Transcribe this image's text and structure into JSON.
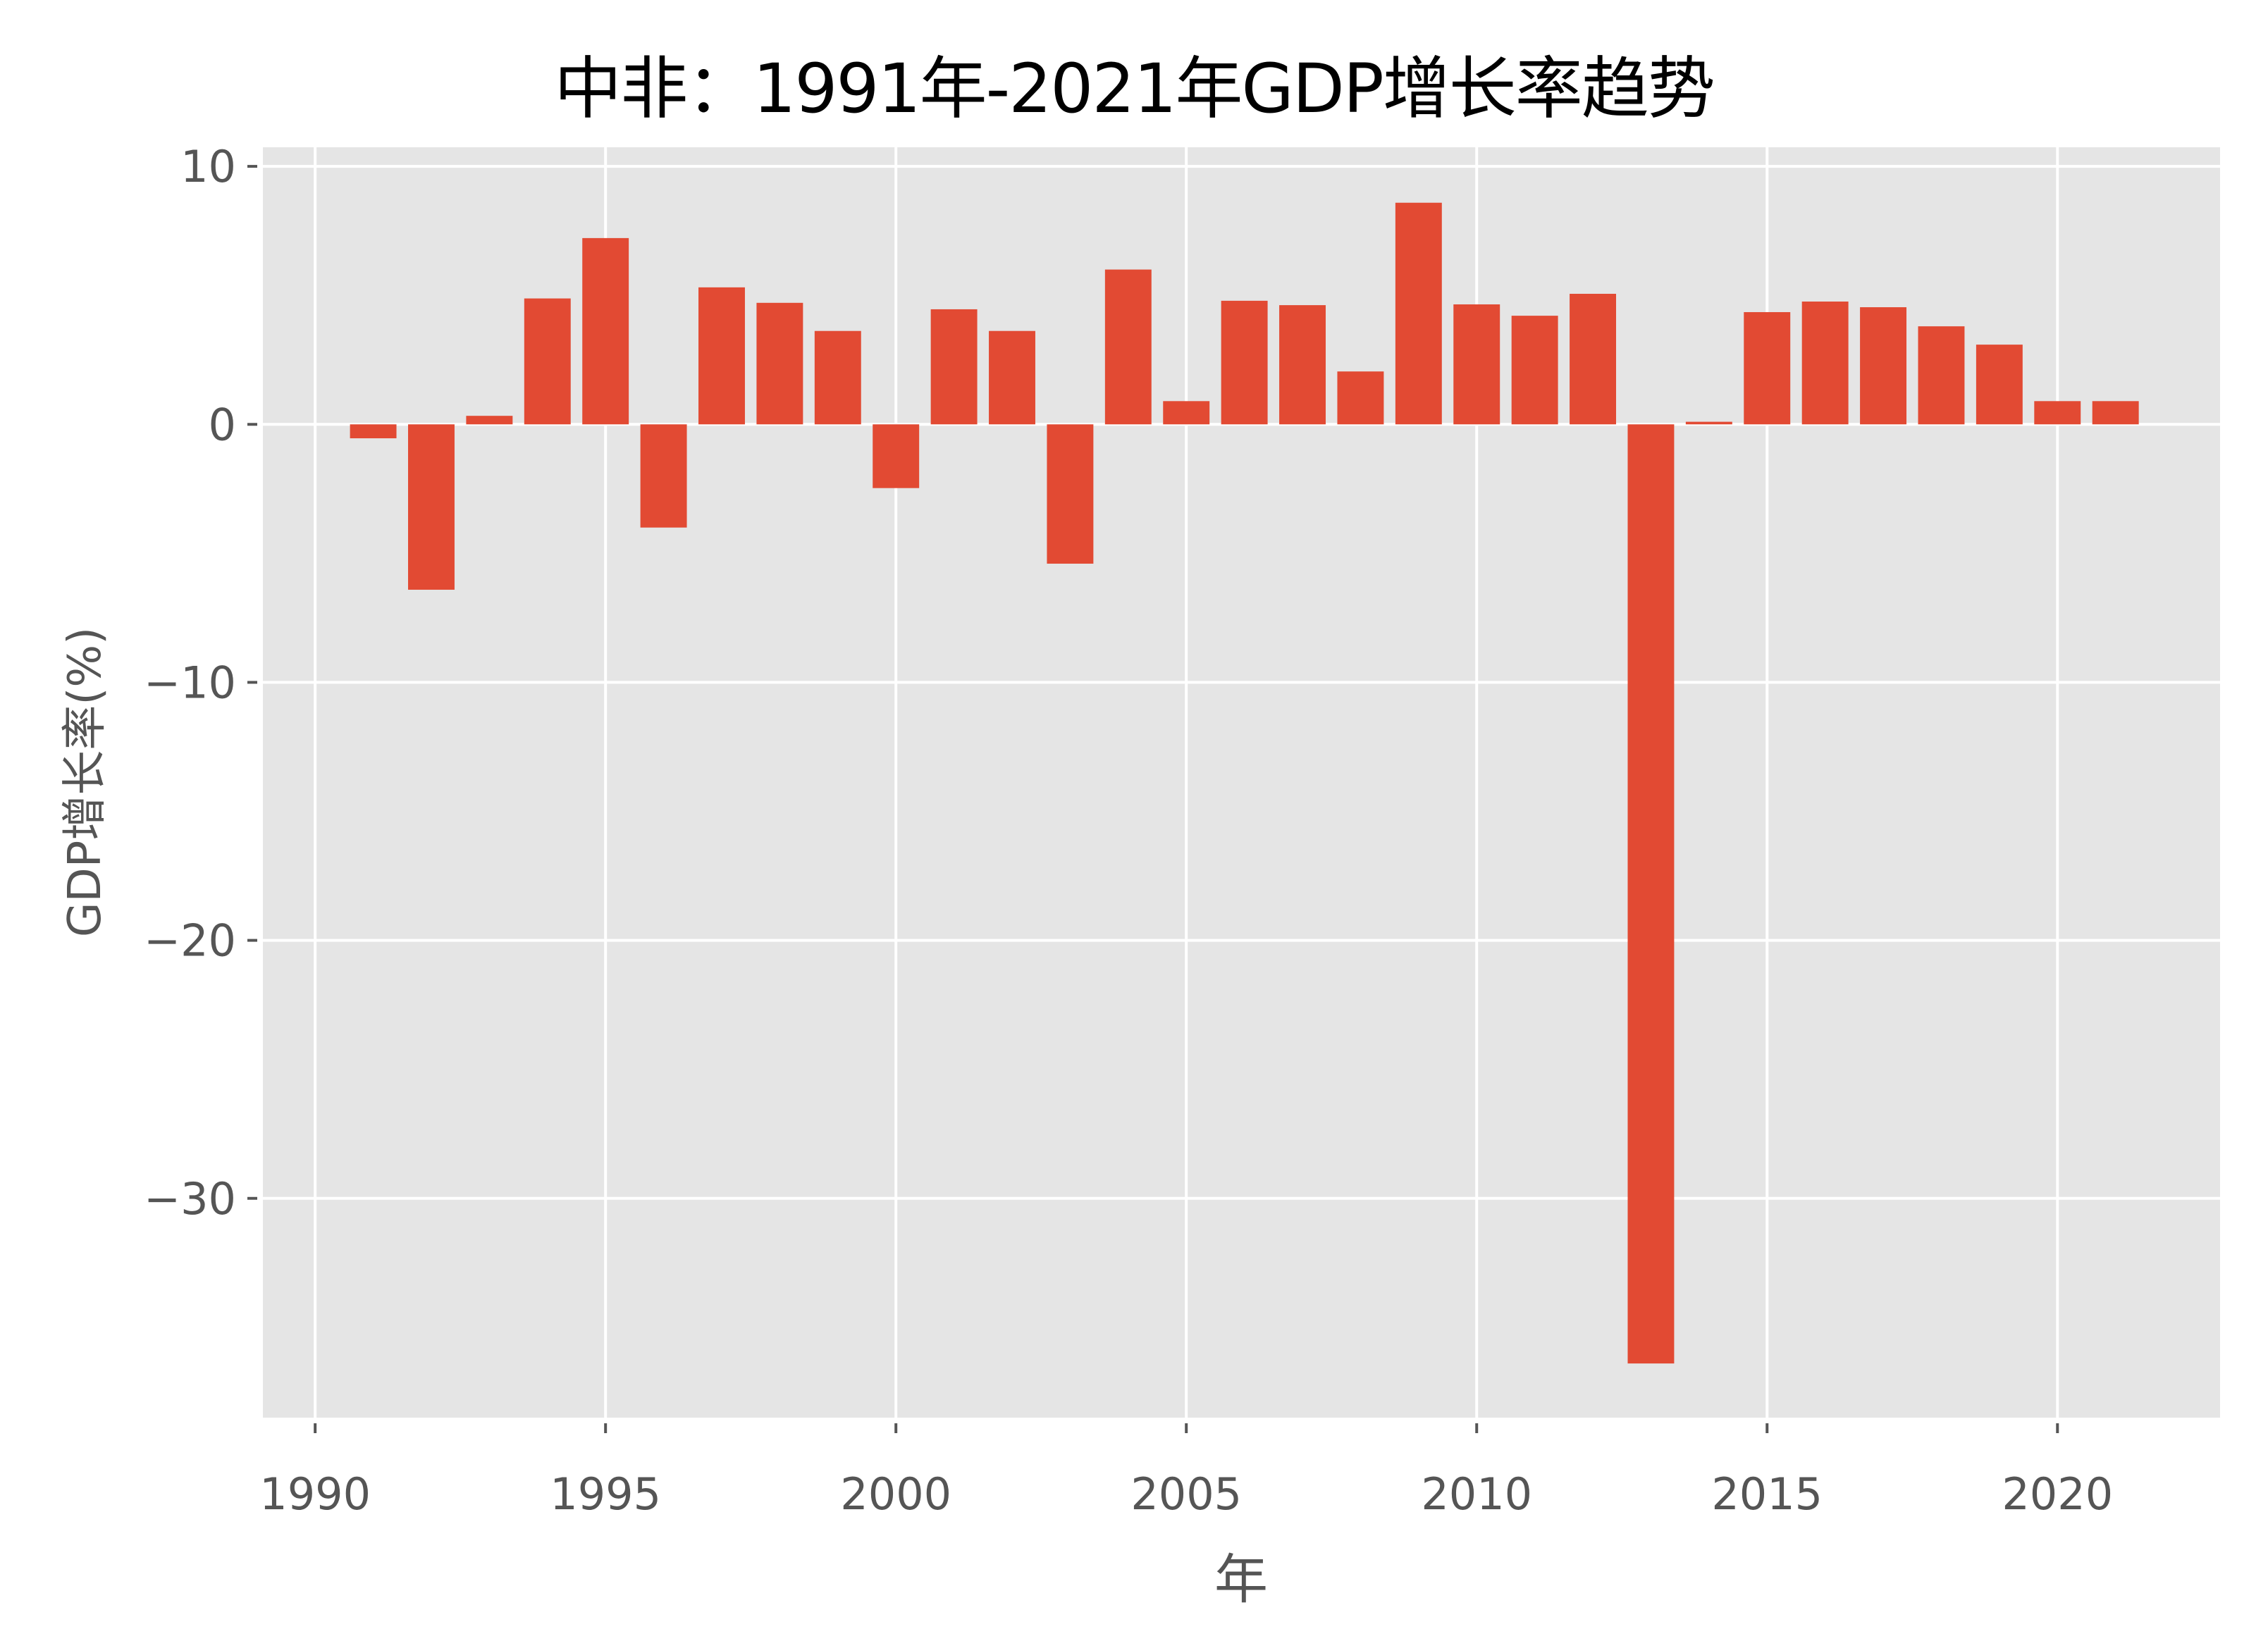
{
  "chart_data": {
    "type": "bar",
    "title": "中非：1991年-2021年GDP增长率趋势",
    "xlabel": "年",
    "ylabel": "GDP增长率(%)",
    "categories": [
      1991,
      1992,
      1993,
      1994,
      1995,
      1996,
      1997,
      1998,
      1999,
      2000,
      2001,
      2002,
      2003,
      2004,
      2005,
      2006,
      2007,
      2008,
      2009,
      2010,
      2011,
      2012,
      2013,
      2014,
      2015,
      2016,
      2017,
      2018,
      2019,
      2020,
      2021
    ],
    "values": [
      -0.54,
      -6.41,
      0.33,
      4.88,
      7.22,
      -4.0,
      5.31,
      4.71,
      3.62,
      -2.47,
      4.46,
      3.62,
      -5.4,
      6.0,
      0.9,
      4.79,
      4.62,
      2.05,
      8.59,
      4.65,
      4.21,
      5.06,
      -36.4,
      0.1,
      4.35,
      4.76,
      4.54,
      3.8,
      3.09,
      0.9,
      0.9
    ],
    "xlim": [
      1989.1,
      2022.8
    ],
    "ylim": [
      -38.5,
      10.74
    ],
    "xticks": [
      1990,
      1995,
      2000,
      2005,
      2010,
      2015,
      2020
    ],
    "xtick_labels": [
      "1990",
      "1995",
      "2000",
      "2005",
      "2010",
      "2015",
      "2020"
    ],
    "yticks": [
      10,
      0,
      -10,
      -20,
      -30
    ],
    "ytick_labels": [
      "10",
      "0",
      "−10",
      "−20",
      "−30"
    ],
    "grid": true,
    "legend": null,
    "colors": {
      "bar": "#E24A33",
      "plot_bg": "#E5E5E5",
      "grid": "#FFFFFF",
      "tick_text": "#555555",
      "title": "#000000"
    }
  }
}
